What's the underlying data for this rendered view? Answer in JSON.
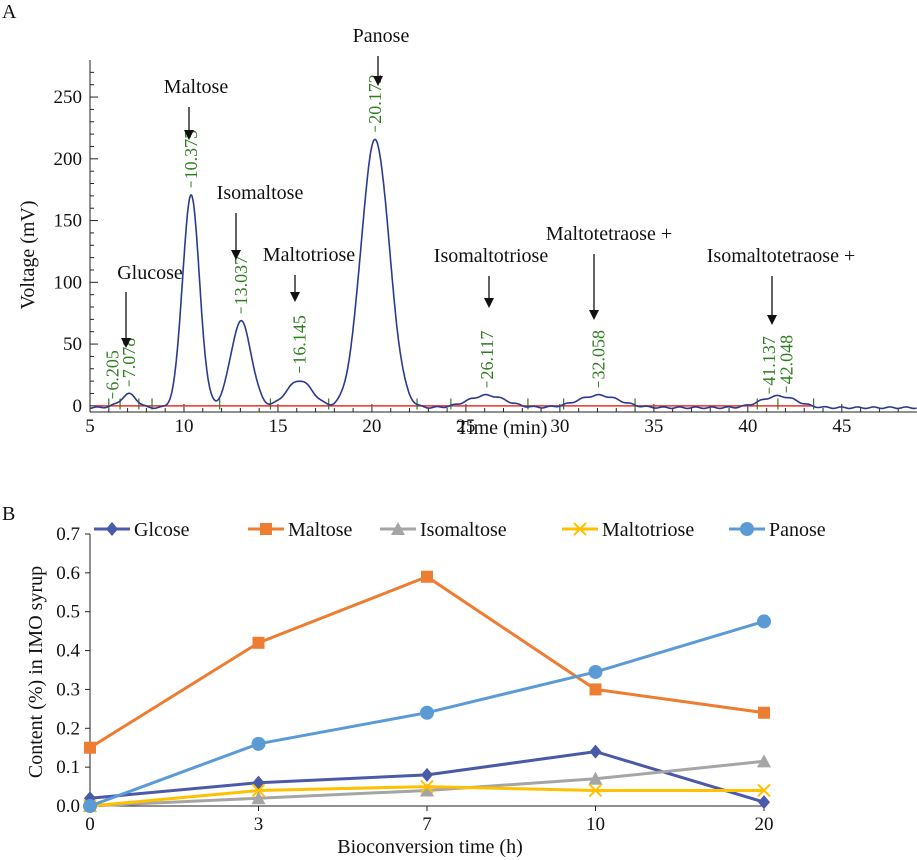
{
  "chart_data": [
    {
      "panel": "A",
      "type": "line",
      "xlabel": "Time (min)",
      "ylabel": "Voltage (mV)",
      "xlim": [
        5,
        49
      ],
      "ylim": [
        -5,
        280
      ],
      "xticks": [
        5,
        10,
        15,
        20,
        25,
        30,
        35,
        40,
        45
      ],
      "yticks": [
        0,
        50,
        100,
        150,
        200,
        250
      ],
      "colors": {
        "trace": "#2b3990",
        "baseline": "#e8332a",
        "retention_label": "#2e7d1f"
      },
      "peaks": [
        {
          "rt": 6.205,
          "rt_label": "6.205",
          "height": 1,
          "width": 0.35
        },
        {
          "rt": 7.078,
          "rt_label": "7.078",
          "height": 11,
          "width": 0.4
        },
        {
          "rt": 10.375,
          "rt_label": "10.375",
          "height": 172,
          "width": 0.45
        },
        {
          "rt": 13.037,
          "rt_label": "13.037",
          "height": 70,
          "width": 0.55
        },
        {
          "rt": 16.145,
          "rt_label": "16.145",
          "height": 22,
          "width": 0.7
        },
        {
          "rt": 20.172,
          "rt_label": "20.172",
          "height": 217,
          "width": 0.75
        },
        {
          "rt": 26.117,
          "rt_label": "26.117",
          "height": 10,
          "width": 1.0
        },
        {
          "rt": 32.058,
          "rt_label": "32.058",
          "height": 10,
          "width": 1.1
        },
        {
          "rt": 41.137,
          "rt_label": "41.137",
          "height": 5,
          "width": 0.8
        },
        {
          "rt": 42.048,
          "rt_label": "42.048",
          "height": 6,
          "width": 0.8
        }
      ],
      "annotations": [
        {
          "text": "Glucose",
          "rt": 7.078
        },
        {
          "text": "Maltose",
          "rt": 10.375
        },
        {
          "text": "Isomaltose",
          "rt": 13.037
        },
        {
          "text": "Maltotriose",
          "rt": 16.145
        },
        {
          "text": "Panose",
          "rt": 20.172
        },
        {
          "text": "Isomaltotriose",
          "rt": 26.117
        },
        {
          "text": "Maltotetraose +",
          "rt": 32.058
        },
        {
          "text": "Isomaltotetraose +",
          "rt": 41.137
        }
      ]
    },
    {
      "panel": "B",
      "type": "line",
      "xlabel": "Bioconversion time (h)",
      "ylabel": "Content (%) in IMO syrup",
      "categories": [
        "0",
        "3",
        "7",
        "10",
        "20"
      ],
      "ylim": [
        0,
        0.7
      ],
      "yticks": [
        "0.0",
        "0.1",
        "0.2",
        "0.3",
        "0.4",
        "0.5",
        "0.6",
        "0.7"
      ],
      "legend_position": "top",
      "series": [
        {
          "name": "Glcose",
          "color": "#4a5aa8",
          "marker": "diamond",
          "values": [
            0.02,
            0.06,
            0.08,
            0.14,
            0.01
          ]
        },
        {
          "name": "Maltose",
          "color": "#ed7d31",
          "marker": "square",
          "values": [
            0.15,
            0.42,
            0.59,
            0.3,
            0.24
          ]
        },
        {
          "name": "Isomaltose",
          "color": "#a5a5a5",
          "marker": "triangle",
          "values": [
            0.0,
            0.02,
            0.04,
            0.07,
            0.115
          ]
        },
        {
          "name": "Maltotriose",
          "color": "#ffc000",
          "marker": "x",
          "values": [
            0.0,
            0.04,
            0.05,
            0.04,
            0.04
          ]
        },
        {
          "name": "Panose",
          "color": "#5b9bd5",
          "marker": "circle",
          "values": [
            0.0,
            0.16,
            0.24,
            0.345,
            0.475
          ]
        }
      ]
    }
  ]
}
